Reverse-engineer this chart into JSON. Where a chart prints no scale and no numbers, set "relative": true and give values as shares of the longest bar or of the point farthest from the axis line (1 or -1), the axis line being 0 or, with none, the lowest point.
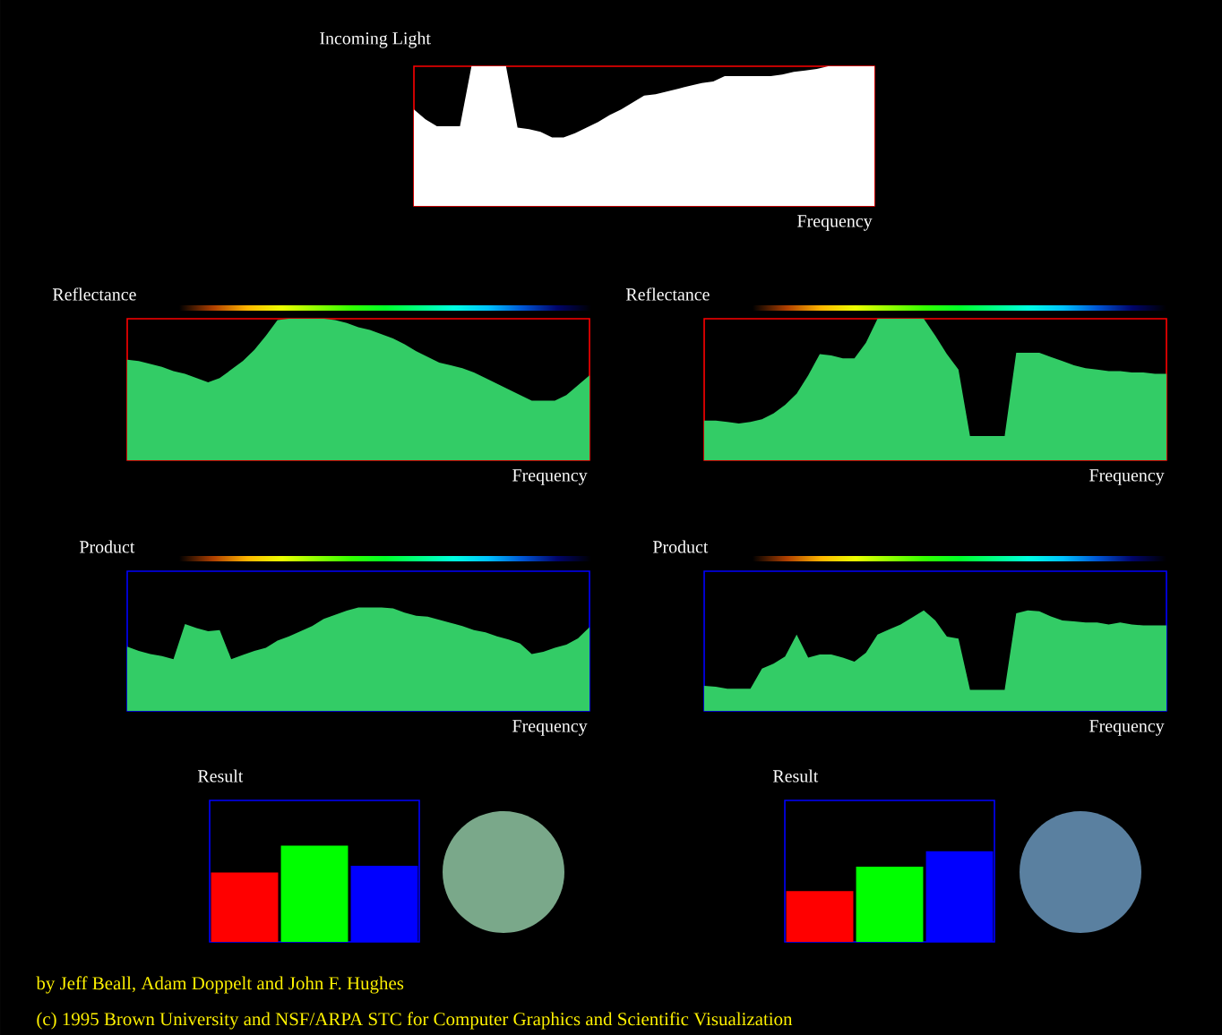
{
  "chart_data": [
    {
      "type": "area",
      "title": "Incoming Light",
      "xlabel": "Frequency",
      "relative": true,
      "categories": [
        null,
        null,
        null,
        null,
        null,
        null,
        null,
        null,
        null,
        null,
        null,
        null,
        null,
        null,
        null,
        null,
        null,
        null,
        null,
        null,
        null,
        null,
        null,
        null,
        null,
        null,
        null,
        null,
        null,
        null,
        null,
        null,
        null,
        null,
        null,
        null,
        null,
        null,
        null,
        null,
        null
      ],
      "color": "#ffffff",
      "values": [
        0.69,
        0.62,
        0.57,
        0.57,
        0.57,
        1.0,
        1.0,
        1.0,
        1.0,
        0.56,
        0.55,
        0.53,
        0.49,
        0.49,
        0.52,
        0.56,
        0.6,
        0.65,
        0.69,
        0.74,
        0.79,
        0.8,
        0.82,
        0.84,
        0.86,
        0.88,
        0.89,
        0.93,
        0.93,
        0.93,
        0.93,
        0.93,
        0.94,
        0.96,
        0.97,
        0.98,
        1.0,
        1.0,
        1.0,
        1.0,
        1.0
      ]
    },
    {
      "type": "area",
      "title": "Reflectance",
      "xlabel": "Frequency",
      "relative": true,
      "categories": [
        null,
        null,
        null,
        null,
        null,
        null,
        null,
        null,
        null,
        null,
        null,
        null,
        null,
        null,
        null,
        null,
        null,
        null,
        null,
        null,
        null,
        null,
        null,
        null,
        null,
        null,
        null,
        null,
        null,
        null,
        null,
        null,
        null,
        null,
        null,
        null,
        null,
        null,
        null,
        null,
        null
      ],
      "color": "#33cc66",
      "values": [
        0.71,
        0.7,
        0.68,
        0.66,
        0.63,
        0.61,
        0.58,
        0.55,
        0.58,
        0.64,
        0.7,
        0.78,
        0.88,
        0.99,
        1.0,
        1.0,
        1.0,
        1.0,
        0.99,
        0.97,
        0.94,
        0.92,
        0.89,
        0.86,
        0.82,
        0.77,
        0.73,
        0.69,
        0.67,
        0.65,
        0.62,
        0.58,
        0.54,
        0.5,
        0.46,
        0.42,
        0.42,
        0.42,
        0.46,
        0.53,
        0.6
      ]
    },
    {
      "type": "area",
      "title": "Reflectance",
      "xlabel": "Frequency",
      "relative": true,
      "categories": [
        null,
        null,
        null,
        null,
        null,
        null,
        null,
        null,
        null,
        null,
        null,
        null,
        null,
        null,
        null,
        null,
        null,
        null,
        null,
        null,
        null,
        null,
        null,
        null,
        null,
        null,
        null,
        null,
        null,
        null,
        null,
        null,
        null,
        null,
        null,
        null,
        null,
        null,
        null,
        null,
        null
      ],
      "color": "#33cc66",
      "values": [
        0.28,
        0.28,
        0.27,
        0.26,
        0.27,
        0.29,
        0.33,
        0.39,
        0.47,
        0.6,
        0.75,
        0.74,
        0.72,
        0.72,
        0.83,
        1.0,
        1.0,
        1.0,
        1.0,
        1.0,
        0.88,
        0.75,
        0.64,
        0.17,
        0.17,
        0.17,
        0.17,
        0.76,
        0.76,
        0.76,
        0.73,
        0.7,
        0.67,
        0.65,
        0.64,
        0.63,
        0.63,
        0.62,
        0.62,
        0.61,
        0.61
      ]
    },
    {
      "type": "area",
      "title": "Product",
      "xlabel": "Frequency",
      "relative": true,
      "categories": [
        null,
        null,
        null,
        null,
        null,
        null,
        null,
        null,
        null,
        null,
        null,
        null,
        null,
        null,
        null,
        null,
        null,
        null,
        null,
        null,
        null,
        null,
        null,
        null,
        null,
        null,
        null,
        null,
        null,
        null,
        null,
        null,
        null,
        null,
        null,
        null,
        null,
        null,
        null,
        null,
        null
      ],
      "color": "#33cc66",
      "values": [
        0.62,
        0.58,
        0.55,
        0.53,
        0.5,
        0.84,
        0.8,
        0.77,
        0.78,
        0.5,
        0.54,
        0.58,
        0.61,
        0.68,
        0.72,
        0.77,
        0.82,
        0.89,
        0.93,
        0.97,
        1.0,
        1.0,
        1.0,
        0.99,
        0.95,
        0.92,
        0.91,
        0.88,
        0.85,
        0.82,
        0.78,
        0.76,
        0.72,
        0.69,
        0.65,
        0.55,
        0.57,
        0.61,
        0.64,
        0.7,
        0.81
      ]
    },
    {
      "type": "area",
      "title": "Product",
      "xlabel": "Frequency",
      "relative": true,
      "categories": [
        null,
        null,
        null,
        null,
        null,
        null,
        null,
        null,
        null,
        null,
        null,
        null,
        null,
        null,
        null,
        null,
        null,
        null,
        null,
        null,
        null,
        null,
        null,
        null,
        null,
        null,
        null,
        null,
        null,
        null,
        null,
        null,
        null,
        null,
        null,
        null,
        null,
        null,
        null,
        null,
        null
      ],
      "color": "#33cc66",
      "values": [
        0.25,
        0.24,
        0.22,
        0.22,
        0.22,
        0.42,
        0.47,
        0.54,
        0.76,
        0.53,
        0.56,
        0.56,
        0.53,
        0.49,
        0.58,
        0.76,
        0.81,
        0.86,
        0.93,
        1.0,
        0.9,
        0.74,
        0.72,
        0.21,
        0.21,
        0.21,
        0.21,
        0.97,
        1.0,
        0.99,
        0.94,
        0.9,
        0.89,
        0.88,
        0.88,
        0.86,
        0.88,
        0.86,
        0.85,
        0.85,
        0.85
      ]
    },
    {
      "type": "bar",
      "title": "Result",
      "relative": true,
      "categories": [
        null,
        null,
        null
      ],
      "colors": [
        "#ff0000",
        "#00ff00",
        "#0000ff"
      ],
      "values": [
        0.72,
        1.0,
        0.79
      ]
    },
    {
      "type": "bar",
      "title": "Result",
      "relative": true,
      "categories": [
        null,
        null,
        null
      ],
      "colors": [
        "#ff0000",
        "#00ff00",
        "#0000ff"
      ],
      "values": [
        0.56,
        0.83,
        1.0
      ],
      "annotations": [
        "by Jeff Beall, Adam Doppelt and John F. Hughes",
        "(c) 1995 Brown University and NSF/ARPA STC for Computer Graphics and Scientific Visualization"
      ]
    }
  ]
}
